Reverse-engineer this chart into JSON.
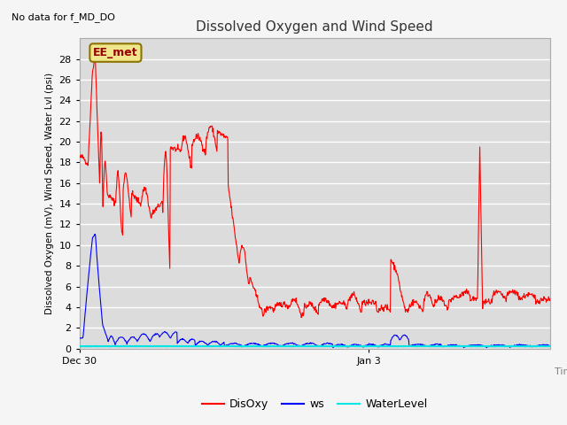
{
  "title": "Dissolved Oxygen and Wind Speed",
  "subtitle": "No data for f_MD_DO",
  "ylabel": "Dissolved Oxygen (mV), Wind Speed, Water Lvl (psi)",
  "xlabel": "Time",
  "annotation": "EE_met",
  "xlim_days": [
    0,
    6.5
  ],
  "ylim": [
    0,
    30
  ],
  "yticks": [
    0,
    2,
    4,
    6,
    8,
    10,
    12,
    14,
    16,
    18,
    20,
    22,
    24,
    26,
    28
  ],
  "xtick_labels": [
    "Dec 30",
    "Jan 3"
  ],
  "xtick_positions": [
    0.0,
    4.0
  ],
  "plot_bg_color": "#dcdcdc",
  "fig_bg_color": "#f5f5f5",
  "grid_color": "#ffffff",
  "disoxy_color": "#ff0000",
  "ws_color": "#0000ff",
  "waterlevel_color": "#00e5e5",
  "legend_labels": [
    "DisOxy",
    "ws",
    "WaterLevel"
  ]
}
